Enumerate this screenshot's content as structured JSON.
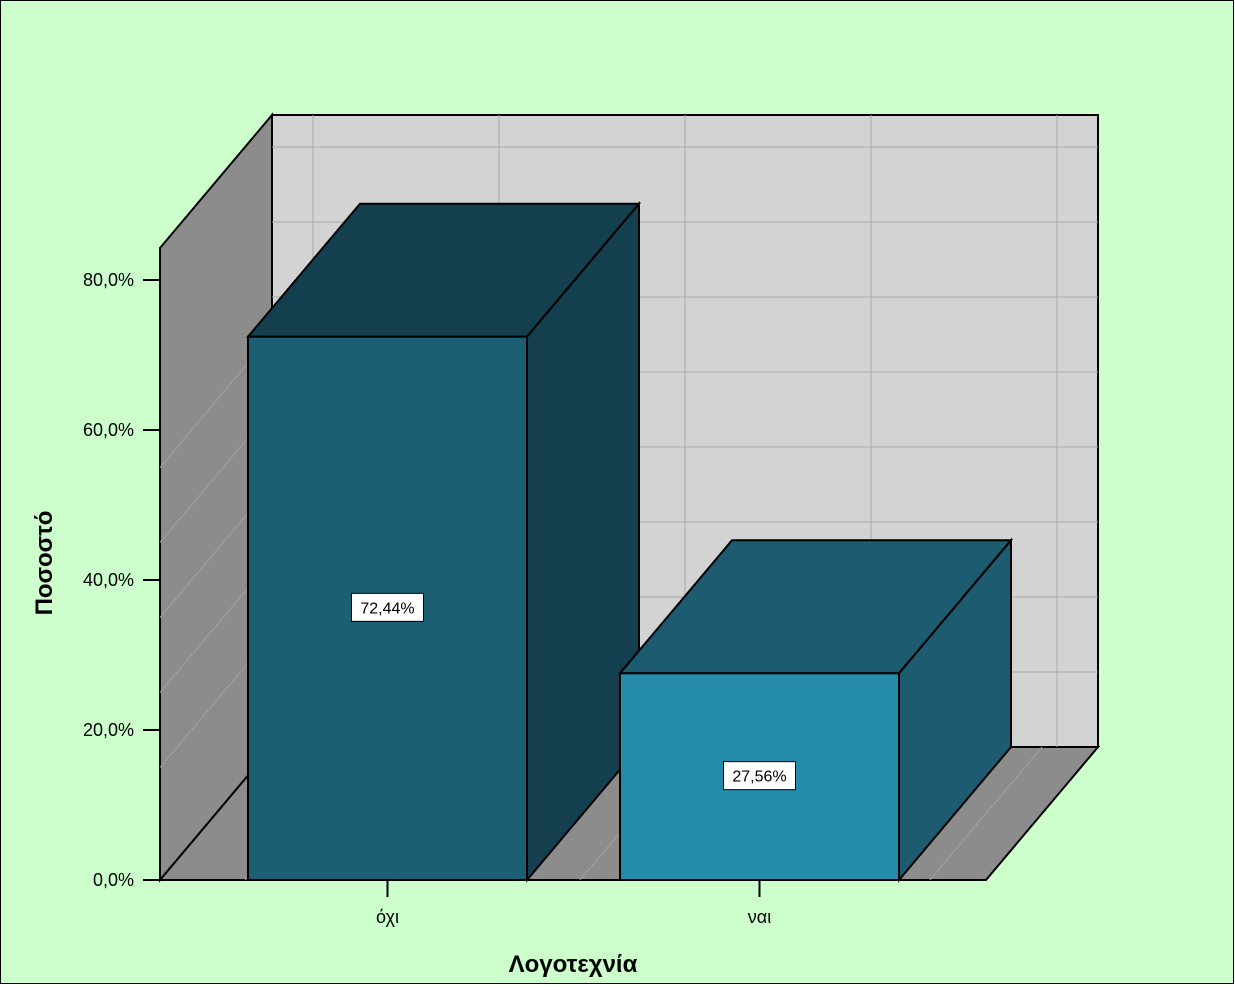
{
  "chart_data": {
    "type": "bar",
    "categories": [
      "όχι",
      "ναι"
    ],
    "values": [
      72.44,
      27.56
    ],
    "value_labels": [
      "72,44%",
      "27,56%"
    ],
    "xlabel": "Λογοτεχνία",
    "ylabel": "Ποσοστό",
    "ylim": [
      0,
      80
    ],
    "yticks": [
      0,
      20,
      40,
      60,
      80
    ],
    "ytick_labels": [
      "0,0%",
      "20,0%",
      "40,0%",
      "60,0%",
      "80,0%"
    ],
    "grid": true,
    "style": "3d",
    "colors": {
      "background": "#ccffcc",
      "wall": "#d3d3d3",
      "side_wall": "#8c8c8c",
      "floor": "#8c8c8c",
      "grid": "#a8a8a8",
      "bar_front": [
        "#1c5e74",
        "#248bac"
      ],
      "bar_top": [
        "#133f4f",
        "#1c5b70"
      ],
      "bar_side": [
        "#133f4f",
        "#1c5b70"
      ]
    }
  }
}
